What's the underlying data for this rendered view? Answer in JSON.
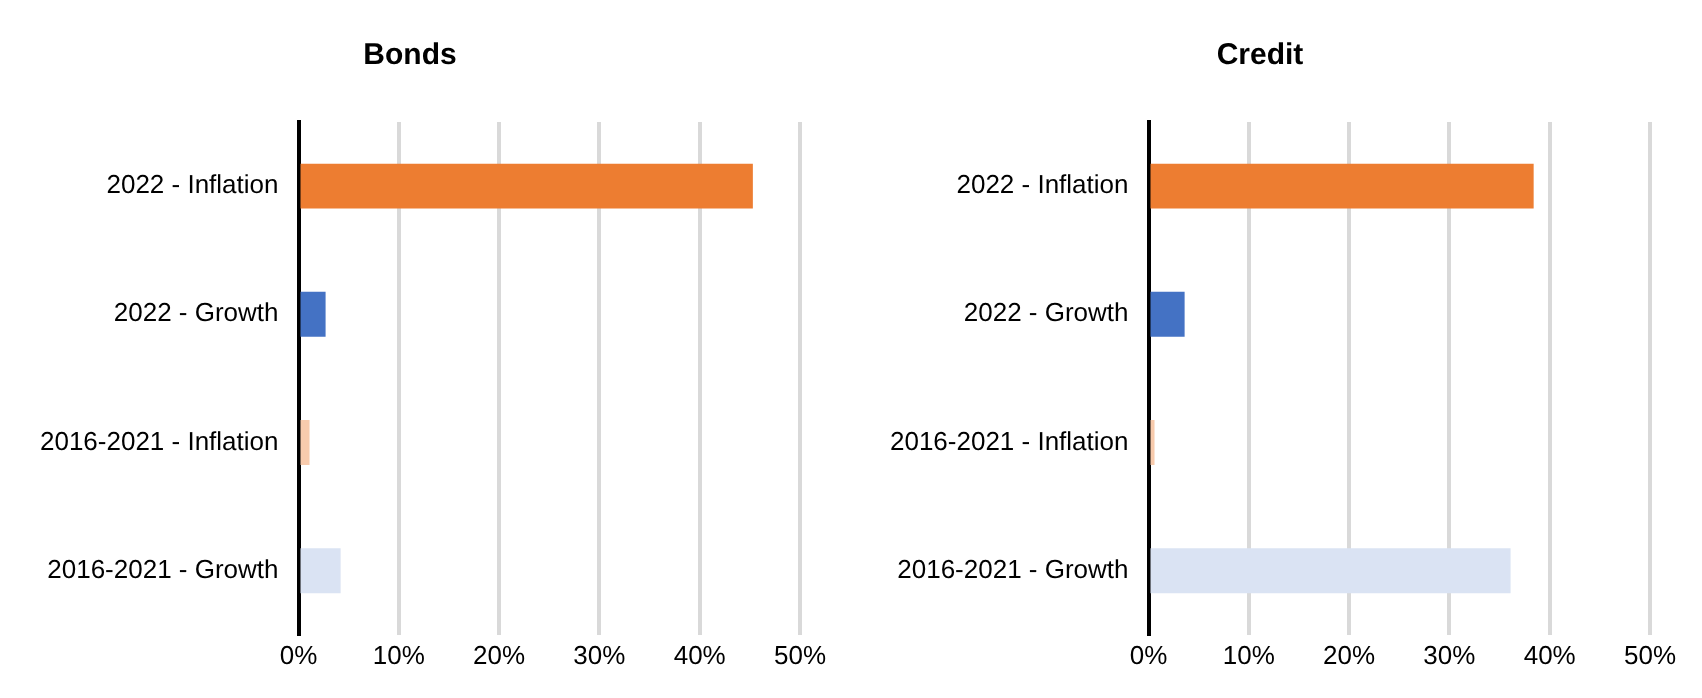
{
  "chart_data": [
    {
      "type": "bar",
      "orientation": "horizontal",
      "title": "Bonds",
      "categories": [
        "2022 - Inflation",
        "2022 - Growth",
        "2016-2021 - Inflation",
        "2016-2021 - Growth"
      ],
      "values": [
        45.3,
        2.7,
        1.1,
        4.2
      ],
      "colors": [
        "#ed7d31",
        "#4472c4",
        "#f8cbad",
        "#dae3f3"
      ],
      "xlim": [
        0,
        50
      ],
      "xticks": [
        {
          "value": 0,
          "label": "0%"
        },
        {
          "value": 10,
          "label": "10%"
        },
        {
          "value": 20,
          "label": "20%"
        },
        {
          "value": 30,
          "label": "30%"
        },
        {
          "value": 40,
          "label": "40%"
        },
        {
          "value": 50,
          "label": "50%"
        }
      ],
      "grid": "x"
    },
    {
      "type": "bar",
      "orientation": "horizontal",
      "title": "Credit",
      "categories": [
        "2022 - Inflation",
        "2022 - Growth",
        "2016-2021 - Inflation",
        "2016-2021 - Growth"
      ],
      "values": [
        38.4,
        3.6,
        0.6,
        36.1
      ],
      "colors": [
        "#ed7d31",
        "#4472c4",
        "#f8cbad",
        "#dae3f3"
      ],
      "xlim": [
        0,
        50
      ],
      "xticks": [
        {
          "value": 0,
          "label": "0%"
        },
        {
          "value": 10,
          "label": "10%"
        },
        {
          "value": 20,
          "label": "20%"
        },
        {
          "value": 30,
          "label": "30%"
        },
        {
          "value": 40,
          "label": "40%"
        },
        {
          "value": 50,
          "label": "50%"
        }
      ],
      "grid": "x"
    }
  ]
}
